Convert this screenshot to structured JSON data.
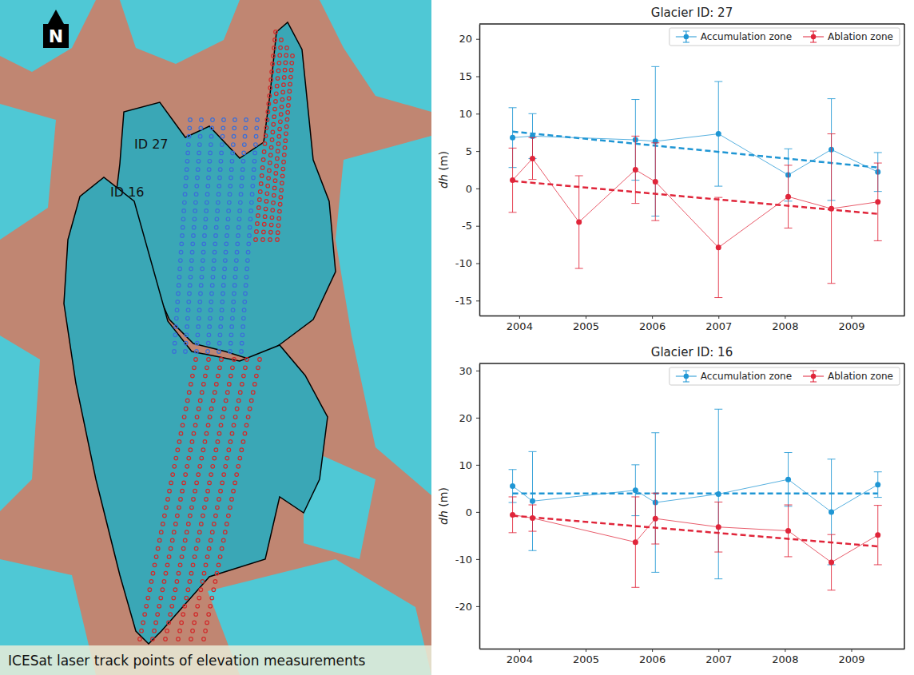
{
  "chart_data": [
    {
      "type": "line",
      "title": "Glacier ID: 27",
      "y_label": "dh (m)",
      "xlim": [
        2003.4,
        2009.8
      ],
      "xticks": [
        2004,
        2005,
        2006,
        2007,
        2008,
        2009
      ],
      "ylim": [
        -17,
        22
      ],
      "yticks": [
        -15,
        -10,
        -5,
        0,
        5,
        10,
        15,
        20
      ],
      "grid": false,
      "legend": "upper right",
      "marker": "circle",
      "line_style": "solid",
      "series": [
        {
          "name": "Accumulation zone",
          "color": "#1f96d4",
          "x": [
            2003.9,
            2004.2,
            2005.75,
            2006.05,
            2007.0,
            2008.05,
            2008.7,
            2009.4
          ],
          "values": [
            6.8,
            7.0,
            6.5,
            6.3,
            7.3,
            1.8,
            5.2,
            2.2
          ],
          "error": [
            4.0,
            3.0,
            5.4,
            10.0,
            7.0,
            3.5,
            6.8,
            2.6
          ],
          "trend": {
            "x": [
              2003.9,
              2009.4
            ],
            "values": [
              7.6,
              2.8
            ],
            "line_style": "dashed"
          }
        },
        {
          "name": "Ablation zone",
          "color": "#e0253a",
          "x": [
            2003.9,
            2004.2,
            2004.9,
            2005.75,
            2006.05,
            2007.0,
            2008.05,
            2008.7,
            2009.4
          ],
          "values": [
            1.1,
            4.0,
            -4.5,
            2.5,
            0.9,
            -7.9,
            -1.1,
            -2.7,
            -1.8
          ],
          "error": [
            4.3,
            2.8,
            6.2,
            4.5,
            5.2,
            6.7,
            4.2,
            10.0,
            5.2
          ],
          "trend": {
            "x": [
              2003.9,
              2009.4
            ],
            "values": [
              1.0,
              -3.4
            ],
            "line_style": "dashed"
          }
        }
      ]
    },
    {
      "type": "line",
      "title": "Glacier ID: 16",
      "y_label": "dh (m)",
      "xlim": [
        2003.4,
        2009.8
      ],
      "xticks": [
        2004,
        2005,
        2006,
        2007,
        2008,
        2009
      ],
      "ylim": [
        -29,
        31.5
      ],
      "yticks": [
        -20,
        -10,
        0,
        10,
        20,
        30
      ],
      "grid": false,
      "legend": "upper right",
      "marker": "circle",
      "line_style": "solid",
      "series": [
        {
          "name": "Accumulation zone",
          "color": "#1f96d4",
          "x": [
            2003.9,
            2004.2,
            2005.75,
            2006.05,
            2007.0,
            2008.05,
            2008.7,
            2009.4
          ],
          "values": [
            5.5,
            2.3,
            4.6,
            2.0,
            3.8,
            6.9,
            0,
            5.8
          ],
          "error": [
            3.5,
            10.5,
            5.4,
            14.8,
            18.0,
            5.7,
            11.2,
            2.7
          ],
          "trend": {
            "x": [
              2003.9,
              2009.4
            ],
            "values": [
              3.9,
              3.9
            ],
            "line_style": "dashed"
          }
        },
        {
          "name": "Ablation zone",
          "color": "#e0253a",
          "x": [
            2003.9,
            2004.2,
            2005.75,
            2006.05,
            2007.0,
            2008.05,
            2008.7,
            2009.4
          ],
          "values": [
            -0.6,
            -1.3,
            -6.4,
            -1.4,
            -3.2,
            -4.0,
            -10.7,
            -4.9
          ],
          "error": [
            3.8,
            2.8,
            9.6,
            5.4,
            5.3,
            5.5,
            5.9,
            6.3
          ],
          "trend": {
            "x": [
              2003.9,
              2009.4
            ],
            "values": [
              -0.8,
              -7.3
            ],
            "line_style": "dashed"
          }
        }
      ]
    }
  ],
  "map": {
    "north_label": "N",
    "glacier_labels": [
      "ID 27",
      "ID 16"
    ],
    "caption": "ICESat laser track points of elevation measurements"
  }
}
